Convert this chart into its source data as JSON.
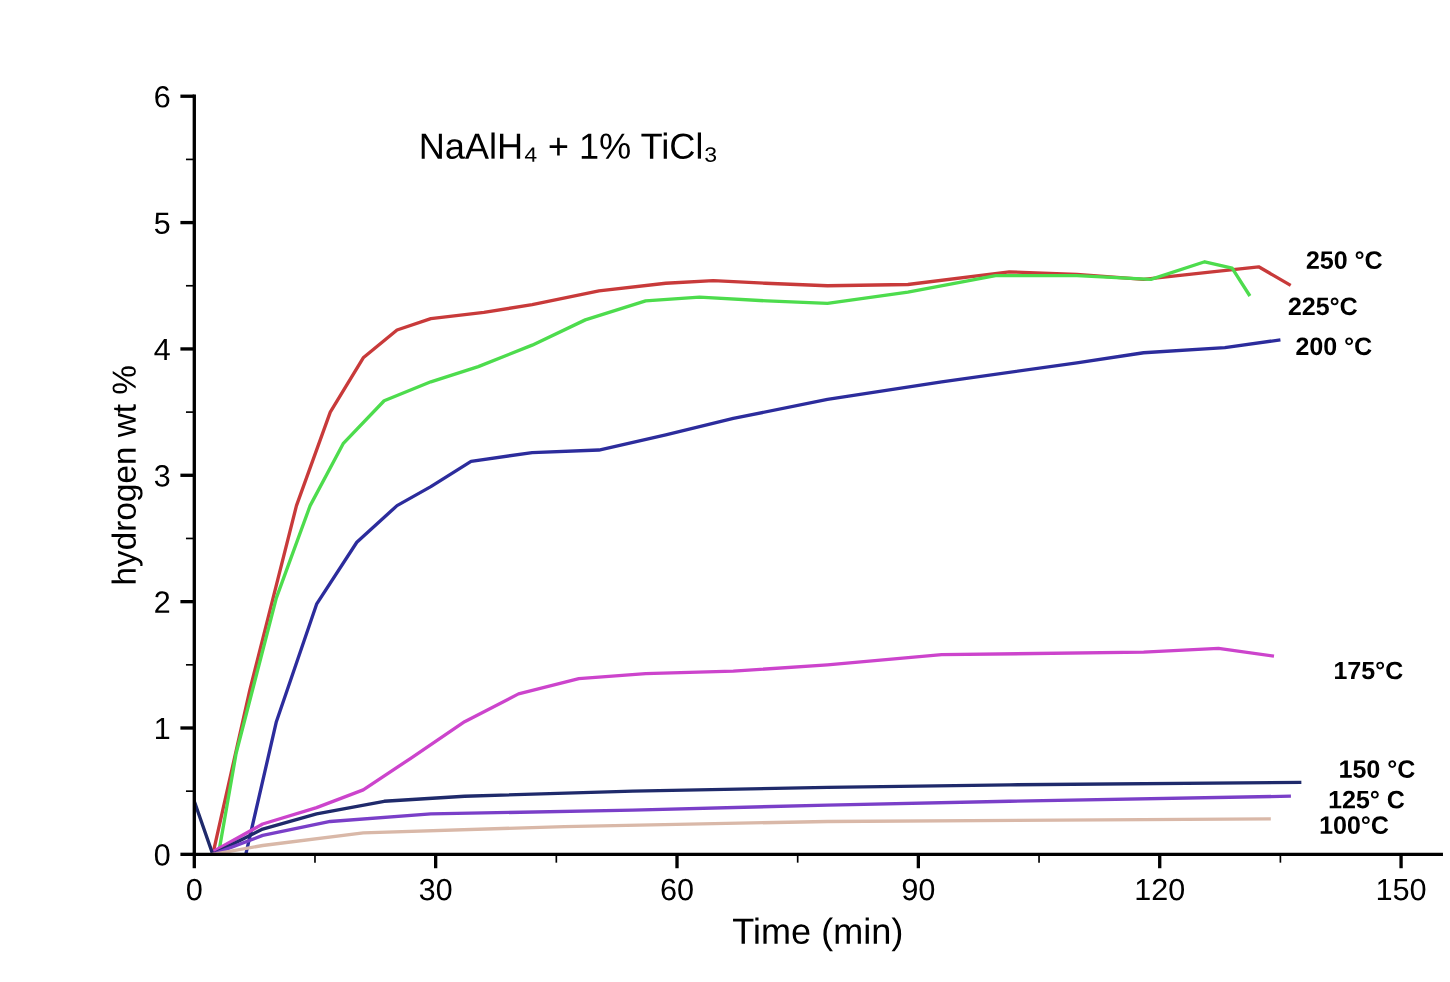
{
  "chart_data": {
    "type": "line",
    "title": "NaAlH₄ + 1% TiCl₃",
    "xlabel": "Time (min)",
    "ylabel": "hydrogen wt %",
    "xlim": [
      0,
      155
    ],
    "xticks": [
      0,
      30,
      60,
      90,
      120,
      150
    ],
    "ylim": [
      0,
      6
    ],
    "yticks": [
      0,
      1,
      2,
      3,
      4,
      5,
      6
    ],
    "grid": false,
    "marker": "none",
    "line_style": "solid",
    "series": [
      {
        "name": "250 °C",
        "color": "#c83a3a",
        "x": [
          2.3,
          6.9,
          12.7,
          16.9,
          21,
          25.2,
          29.4,
          36,
          42,
          50.3,
          58.6,
          64.5,
          71,
          78.7,
          88.7,
          101.3,
          109.7,
          118,
          126.5,
          132.3,
          136.1
        ],
        "values": [
          0,
          1.3,
          2.76,
          3.5,
          3.93,
          4.15,
          4.24,
          4.29,
          4.35,
          4.46,
          4.52,
          4.54,
          4.52,
          4.5,
          4.51,
          4.61,
          4.59,
          4.55,
          4.61,
          4.65,
          4.51
        ]
      },
      {
        "name": "225°C",
        "color": "#4ddc4d",
        "x": [
          3,
          5.2,
          10.2,
          14.4,
          18.5,
          23.6,
          29.4,
          35.3,
          42,
          48.6,
          56.1,
          62.8,
          71.2,
          78.7,
          88.7,
          99.6,
          109.7,
          118.9,
          125.6,
          129,
          131.1
        ],
        "values": [
          0,
          0.8,
          2.03,
          2.76,
          3.25,
          3.59,
          3.74,
          3.86,
          4.03,
          4.23,
          4.38,
          4.41,
          4.38,
          4.36,
          4.45,
          4.58,
          4.58,
          4.55,
          4.69,
          4.64,
          4.43
        ]
      },
      {
        "name": "200 °C",
        "color": "#2c2c9c",
        "x": [
          6.4,
          10.2,
          15.2,
          20.2,
          25.2,
          29.4,
          34.4,
          42,
          50.3,
          58.6,
          67,
          78.7,
          92.9,
          109.7,
          118,
          128.1,
          134.8
        ],
        "values": [
          0,
          1.05,
          1.98,
          2.47,
          2.76,
          2.91,
          3.11,
          3.18,
          3.2,
          3.32,
          3.45,
          3.6,
          3.74,
          3.89,
          3.97,
          4.01,
          4.07
        ]
      },
      {
        "name": "175°C",
        "color": "#cc44cc",
        "x": [
          2.3,
          8.5,
          15.2,
          21,
          26.9,
          33.6,
          40.3,
          47.8,
          56.1,
          67,
          78.7,
          92.9,
          118,
          127.3,
          134
        ],
        "values": [
          0.02,
          0.24,
          0.37,
          0.51,
          0.76,
          1.05,
          1.27,
          1.39,
          1.43,
          1.45,
          1.5,
          1.58,
          1.6,
          1.63,
          1.57
        ]
      },
      {
        "name": "150 °C",
        "color": "#1f2a6b",
        "x": [
          0,
          2.3,
          8.5,
          15.2,
          23.6,
          33.6,
          54.5,
          78.7,
          101.3,
          137.4
        ],
        "values": [
          0.42,
          0,
          0.2,
          0.32,
          0.42,
          0.46,
          0.5,
          0.53,
          0.55,
          0.57
        ]
      },
      {
        "name": "125° C",
        "color": "#7a3fc8",
        "x": [
          2.3,
          8.5,
          16.9,
          29.4,
          54.5,
          78.7,
          101.3,
          136.1
        ],
        "values": [
          0,
          0.15,
          0.26,
          0.32,
          0.35,
          0.39,
          0.42,
          0.46
        ]
      },
      {
        "name": "100°C",
        "color": "#d9b8a8",
        "x": [
          2.3,
          8.5,
          21,
          46,
          78.7,
          133.6
        ],
        "values": [
          0,
          0.07,
          0.17,
          0.22,
          0.26,
          0.28
        ]
      }
    ]
  }
}
